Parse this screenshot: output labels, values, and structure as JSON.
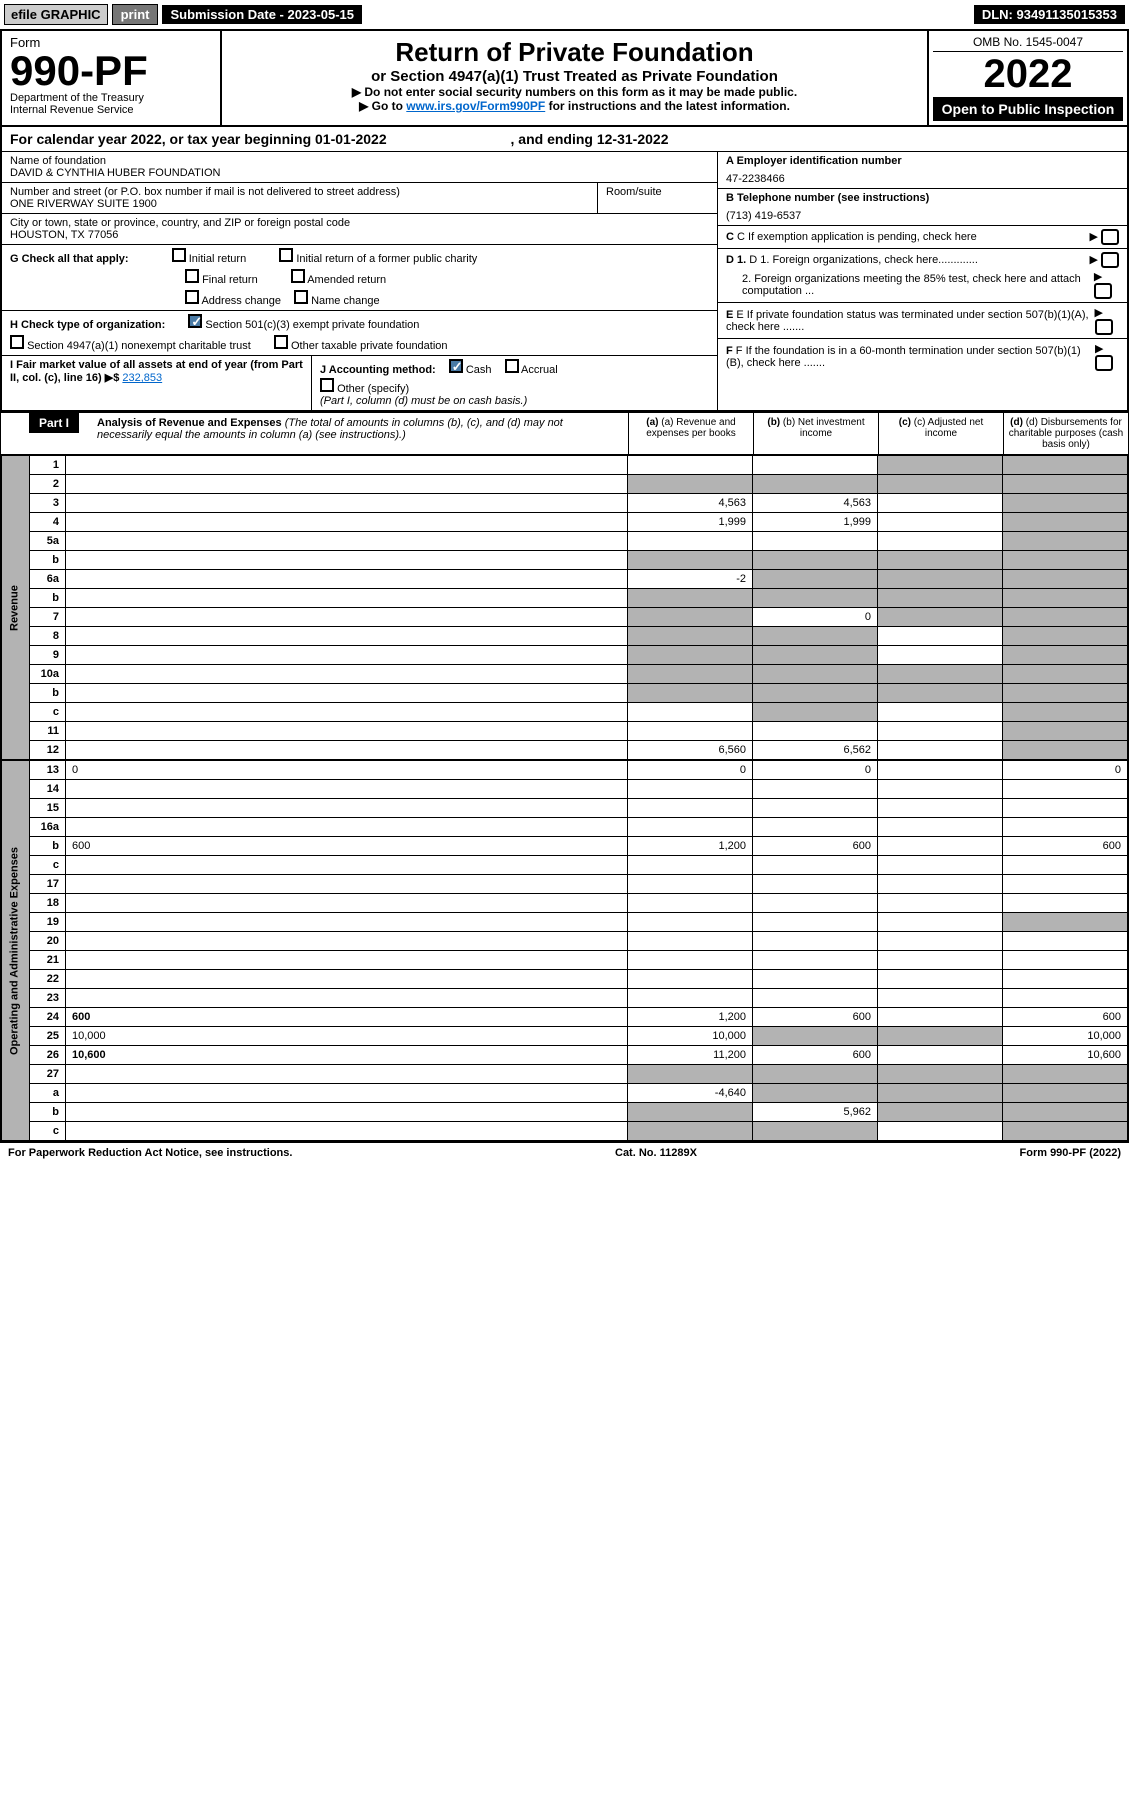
{
  "top": {
    "efile": "efile GRAPHIC",
    "print": "print",
    "sub_date_label": "Submission Date - 2023-05-15",
    "dln": "DLN: 93491135015353"
  },
  "header": {
    "form_label": "Form",
    "form_num": "990-PF",
    "dept": "Department of the Treasury",
    "irs": "Internal Revenue Service",
    "title": "Return of Private Foundation",
    "subtitle": "or Section 4947(a)(1) Trust Treated as Private Foundation",
    "instr1": "▶ Do not enter social security numbers on this form as it may be made public.",
    "instr2_pre": "▶ Go to ",
    "instr2_link": "www.irs.gov/Form990PF",
    "instr2_post": " for instructions and the latest information.",
    "omb": "OMB No. 1545-0047",
    "year": "2022",
    "open": "Open to Public Inspection"
  },
  "cal": "For calendar year 2022, or tax year beginning 01-01-2022",
  "cal_end": ", and ending 12-31-2022",
  "info": {
    "name_label": "Name of foundation",
    "name": "DAVID & CYNTHIA HUBER FOUNDATION",
    "addr_label": "Number and street (or P.O. box number if mail is not delivered to street address)",
    "addr": "ONE RIVERWAY SUITE 1900",
    "room_label": "Room/suite",
    "city_label": "City or town, state or province, country, and ZIP or foreign postal code",
    "city": "HOUSTON, TX  77056",
    "ein_label": "A Employer identification number",
    "ein": "47-2238466",
    "phone_label": "B Telephone number (see instructions)",
    "phone": "(713) 419-6537",
    "c": "C If exemption application is pending, check here",
    "d1": "D 1. Foreign organizations, check here.............",
    "d2": "2. Foreign organizations meeting the 85% test, check here and attach computation ...",
    "e": "E If private foundation status was terminated under section 507(b)(1)(A), check here .......",
    "f": "F If the foundation is in a 60-month termination under section 507(b)(1)(B), check here .......",
    "g_label": "G Check all that apply:",
    "g_opts": [
      "Initial return",
      "Initial return of a former public charity",
      "Final return",
      "Amended return",
      "Address change",
      "Name change"
    ],
    "h_label": "H Check type of organization:",
    "h1": "Section 501(c)(3) exempt private foundation",
    "h2": "Section 4947(a)(1) nonexempt charitable trust",
    "h3": "Other taxable private foundation",
    "i_label": "I Fair market value of all assets at end of year (from Part II, col. (c), line 16) ▶$ ",
    "i_val": "232,853",
    "j_label": "J Accounting method:",
    "j_cash": "Cash",
    "j_accrual": "Accrual",
    "j_other": "Other (specify)",
    "j_note": "(Part I, column (d) must be on cash basis.)"
  },
  "part1": {
    "label": "Part I",
    "title": "Analysis of Revenue and Expenses",
    "note": " (The total of amounts in columns (b), (c), and (d) may not necessarily equal the amounts in column (a) (see instructions).)",
    "col_a": "(a) Revenue and expenses per books",
    "col_b": "(b) Net investment income",
    "col_c": "(c) Adjusted net income",
    "col_d": "(d) Disbursements for charitable purposes (cash basis only)"
  },
  "sides": {
    "revenue": "Revenue",
    "expenses": "Operating and Administrative Expenses"
  },
  "lines": [
    {
      "n": "1",
      "d": "",
      "a": "",
      "b": "",
      "c": "",
      "sc": true,
      "sd": true
    },
    {
      "n": "2",
      "d": "",
      "a": "",
      "b": "",
      "c": "",
      "sa": true,
      "sb": true,
      "sc": true,
      "sd": true,
      "bold_not": true
    },
    {
      "n": "3",
      "d": "",
      "a": "4,563",
      "b": "4,563",
      "c": "",
      "sd": true
    },
    {
      "n": "4",
      "d": "",
      "a": "1,999",
      "b": "1,999",
      "c": "",
      "sd": true
    },
    {
      "n": "5a",
      "d": "",
      "a": "",
      "b": "",
      "c": "",
      "sd": true
    },
    {
      "n": "b",
      "d": "",
      "a": "",
      "b": "",
      "c": "",
      "sa": true,
      "sb": true,
      "sc": true,
      "sd": true
    },
    {
      "n": "6a",
      "d": "",
      "a": "-2",
      "b": "",
      "c": "",
      "sb": true,
      "sc": true,
      "sd": true
    },
    {
      "n": "b",
      "d": "",
      "a": "",
      "b": "",
      "c": "",
      "sa": true,
      "sb": true,
      "sc": true,
      "sd": true
    },
    {
      "n": "7",
      "d": "",
      "a": "",
      "b": "0",
      "c": "",
      "sa": true,
      "sc": true,
      "sd": true
    },
    {
      "n": "8",
      "d": "",
      "a": "",
      "b": "",
      "c": "",
      "sa": true,
      "sb": true,
      "sd": true
    },
    {
      "n": "9",
      "d": "",
      "a": "",
      "b": "",
      "c": "",
      "sa": true,
      "sb": true,
      "sd": true
    },
    {
      "n": "10a",
      "d": "",
      "a": "",
      "b": "",
      "c": "",
      "sa": true,
      "sb": true,
      "sc": true,
      "sd": true
    },
    {
      "n": "b",
      "d": "",
      "a": "",
      "b": "",
      "c": "",
      "sa": true,
      "sb": true,
      "sc": true,
      "sd": true
    },
    {
      "n": "c",
      "d": "",
      "a": "",
      "b": "",
      "c": "",
      "sb": true,
      "sd": true
    },
    {
      "n": "11",
      "d": "",
      "a": "",
      "b": "",
      "c": "",
      "sd": true
    },
    {
      "n": "12",
      "d": "",
      "a": "6,560",
      "b": "6,562",
      "c": "",
      "sd": true,
      "bold": true
    }
  ],
  "exp_lines": [
    {
      "n": "13",
      "d": "0",
      "a": "0",
      "b": "0",
      "c": ""
    },
    {
      "n": "14",
      "d": "",
      "a": "",
      "b": "",
      "c": ""
    },
    {
      "n": "15",
      "d": "",
      "a": "",
      "b": "",
      "c": ""
    },
    {
      "n": "16a",
      "d": "",
      "a": "",
      "b": "",
      "c": ""
    },
    {
      "n": "b",
      "d": "600",
      "a": "1,200",
      "b": "600",
      "c": ""
    },
    {
      "n": "c",
      "d": "",
      "a": "",
      "b": "",
      "c": ""
    },
    {
      "n": "17",
      "d": "",
      "a": "",
      "b": "",
      "c": ""
    },
    {
      "n": "18",
      "d": "",
      "a": "",
      "b": "",
      "c": ""
    },
    {
      "n": "19",
      "d": "",
      "a": "",
      "b": "",
      "c": "",
      "sd": true
    },
    {
      "n": "20",
      "d": "",
      "a": "",
      "b": "",
      "c": ""
    },
    {
      "n": "21",
      "d": "",
      "a": "",
      "b": "",
      "c": ""
    },
    {
      "n": "22",
      "d": "",
      "a": "",
      "b": "",
      "c": ""
    },
    {
      "n": "23",
      "d": "",
      "a": "",
      "b": "",
      "c": ""
    },
    {
      "n": "24",
      "d": "600",
      "a": "1,200",
      "b": "600",
      "c": "",
      "bold": true
    },
    {
      "n": "25",
      "d": "10,000",
      "a": "10,000",
      "b": "",
      "c": "",
      "sb": true,
      "sc": true
    },
    {
      "n": "26",
      "d": "10,600",
      "a": "11,200",
      "b": "600",
      "c": "",
      "bold": true
    },
    {
      "n": "27",
      "d": "",
      "a": "",
      "b": "",
      "c": "",
      "sa": true,
      "sb": true,
      "sc": true,
      "sd": true
    },
    {
      "n": "a",
      "d": "",
      "a": "-4,640",
      "b": "",
      "c": "",
      "sb": true,
      "sc": true,
      "sd": true,
      "bold": true
    },
    {
      "n": "b",
      "d": "",
      "a": "",
      "b": "5,962",
      "c": "",
      "sa": true,
      "sc": true,
      "sd": true,
      "bold": true
    },
    {
      "n": "c",
      "d": "",
      "a": "",
      "b": "",
      "c": "",
      "sa": true,
      "sb": true,
      "sd": true,
      "bold": true
    }
  ],
  "footer": {
    "left": "For Paperwork Reduction Act Notice, see instructions.",
    "mid": "Cat. No. 11289X",
    "right": "Form 990-PF (2022)"
  },
  "colors": {
    "link": "#0066cc",
    "shade": "#b3b3b3",
    "check": "#4a7ba6"
  }
}
